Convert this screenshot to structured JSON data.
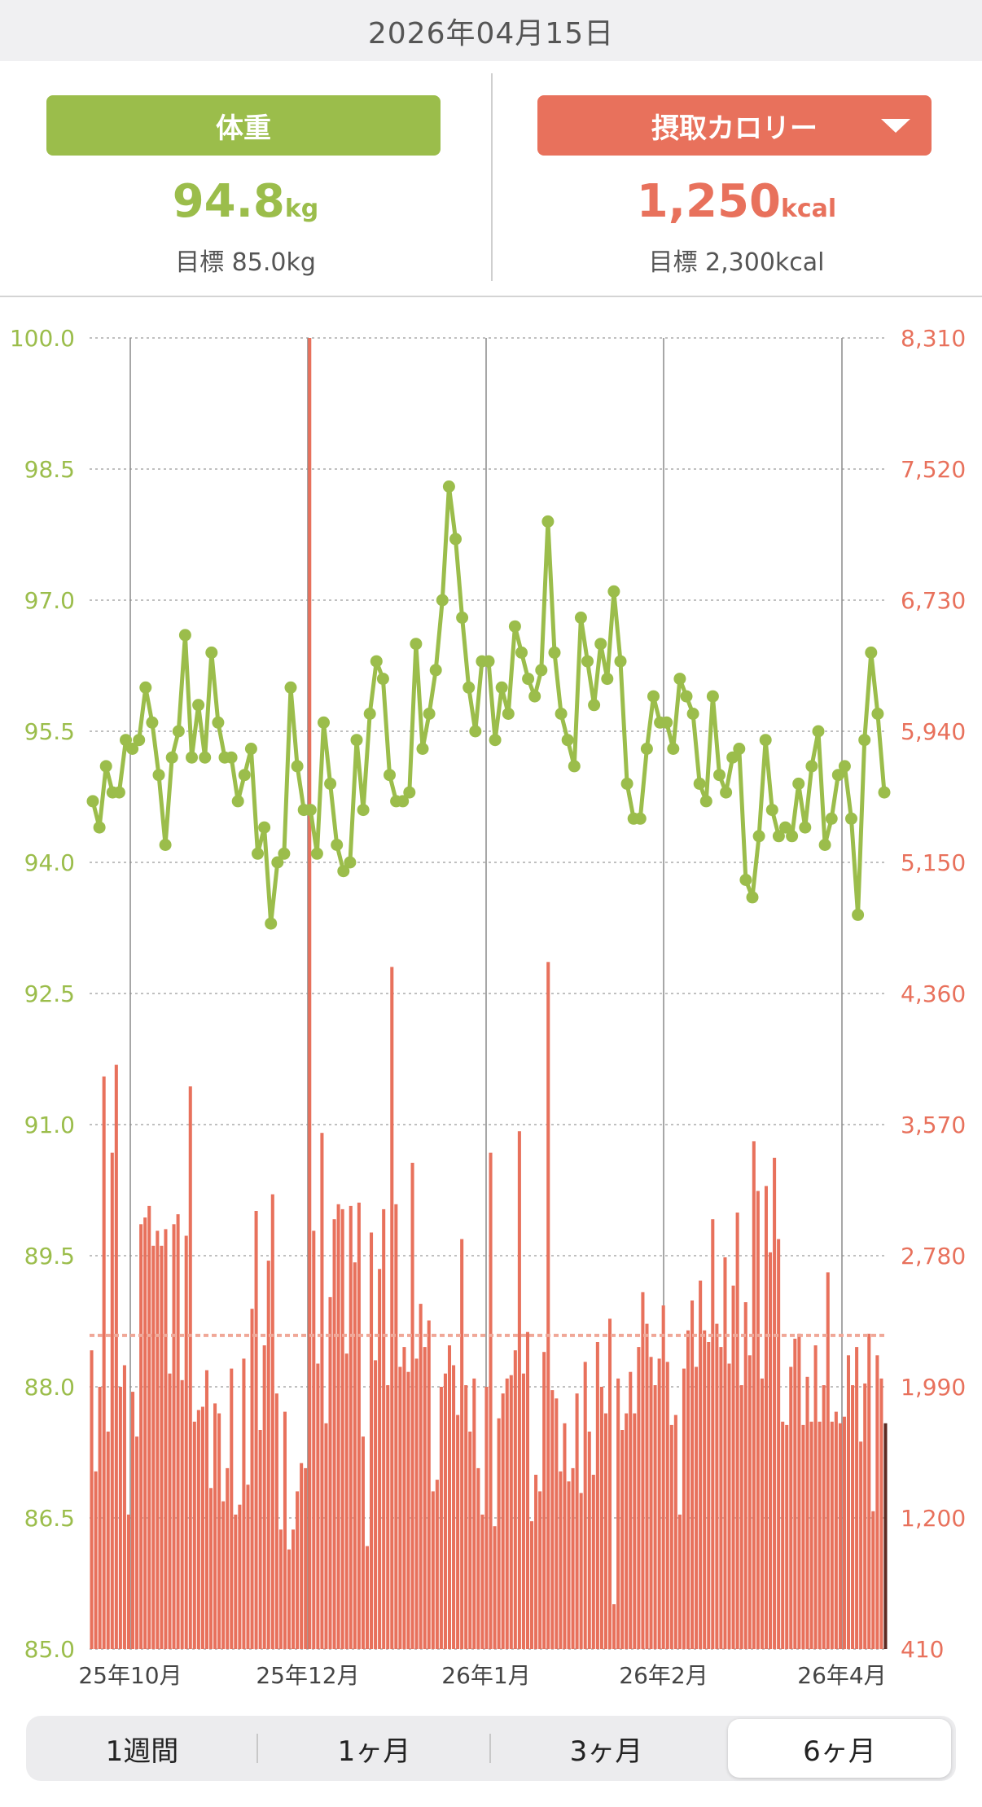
{
  "header": {
    "date": "2026年04月15日"
  },
  "weight": {
    "label": "体重",
    "value": "94.8",
    "unit": "kg",
    "target": "目標 85.0kg"
  },
  "calorie": {
    "label": "摂取カロリー",
    "value": "1,250",
    "unit": "kcal",
    "target": "目標 2,300kcal",
    "dropdown_icon": "chevron-down-icon"
  },
  "colors": {
    "weight": "#9bbd4b",
    "calorie": "#e8715c",
    "calorie_target_line": "#f0a898"
  },
  "periods": [
    "1週間",
    "1ヶ月",
    "3ヶ月",
    "6ヶ月"
  ],
  "selected_period": "6ヶ月",
  "chart_data": {
    "type": "line+bar",
    "x_ticks": [
      "25年10月",
      "25年12月",
      "26年1月",
      "26年2月",
      "26年4月"
    ],
    "left_axis": {
      "ylim": [
        85.0,
        100.0
      ],
      "ticks": [
        "100.0",
        "98.5",
        "97.0",
        "95.5",
        "94.0",
        "92.5",
        "91.0",
        "89.5",
        "88.0",
        "86.5",
        "85.0"
      ]
    },
    "right_axis": {
      "ylim": [
        410,
        8310
      ],
      "ticks": [
        "8,310",
        "7,520",
        "6,730",
        "5,940",
        "5,150",
        "4,360",
        "3,570",
        "2,780",
        "1,990",
        "1,200",
        "410"
      ]
    },
    "calorie_target": 2300,
    "grid": true,
    "weight_series": [
      94.7,
      94.4,
      95.1,
      94.8,
      94.8,
      95.4,
      95.3,
      95.4,
      96.0,
      95.6,
      95.0,
      94.2,
      95.2,
      95.5,
      96.6,
      95.2,
      95.8,
      95.2,
      96.4,
      95.6,
      95.2,
      95.2,
      94.7,
      95.0,
      95.3,
      94.1,
      94.4,
      93.3,
      94.0,
      94.1,
      96.0,
      95.1,
      94.6,
      94.6,
      94.1,
      95.6,
      94.9,
      94.2,
      93.9,
      94.0,
      95.4,
      94.6,
      95.7,
      96.3,
      96.1,
      95.0,
      94.7,
      94.7,
      94.8,
      96.5,
      95.3,
      95.7,
      96.2,
      97.0,
      98.3,
      97.7,
      96.8,
      96.0,
      95.5,
      96.3,
      96.3,
      95.4,
      96.0,
      95.7,
      96.7,
      96.4,
      96.1,
      95.9,
      96.2,
      97.9,
      96.4,
      95.7,
      95.4,
      95.1,
      96.8,
      96.3,
      95.8,
      96.5,
      96.1,
      97.1,
      96.3,
      94.9,
      94.5,
      94.5,
      95.3,
      95.9,
      95.6,
      95.6,
      95.3,
      96.1,
      95.9,
      95.7,
      94.9,
      94.7,
      95.9,
      95.0,
      94.8,
      95.2,
      95.3,
      93.8,
      93.6,
      94.3,
      95.4,
      94.6,
      94.3,
      94.4,
      94.3,
      94.9,
      94.4,
      95.1,
      95.5,
      94.2,
      94.5,
      95.0,
      95.1,
      94.5,
      93.4,
      95.4,
      96.4,
      95.7,
      94.8
    ],
    "calorie_series": [
      2210,
      1480,
      1990,
      3860,
      1720,
      3400,
      3930,
      1990,
      2120,
      1220,
      1960,
      1690,
      2970,
      3010,
      3080,
      2840,
      2930,
      2840,
      2940,
      2070,
      2970,
      3030,
      2030,
      2900,
      3800,
      1780,
      1850,
      1870,
      2090,
      1380,
      1890,
      1830,
      1300,
      1500,
      2100,
      1220,
      1280,
      2160,
      1400,
      2460,
      3050,
      1730,
      2240,
      2750,
      3150,
      1950,
      1130,
      1840,
      1010,
      1130,
      1360,
      1530,
      1500,
      8310,
      2930,
      2130,
      3520,
      1770,
      2530,
      3000,
      3090,
      3060,
      2190,
      3080,
      2740,
      3100,
      1690,
      1030,
      2920,
      2150,
      2700,
      3060,
      2000,
      4520,
      3090,
      2110,
      2230,
      2080,
      3340,
      2160,
      2490,
      2230,
      2390,
      1360,
      1430,
      1990,
      2070,
      2240,
      2120,
      1820,
      2880,
      2000,
      1720,
      2040,
      1500,
      1220,
      1990,
      3400,
      1150,
      1800,
      1950,
      2040,
      2060,
      2210,
      3530,
      2070,
      2320,
      1180,
      1460,
      1360,
      2200,
      4550,
      1970,
      1920,
      1480,
      1770,
      1420,
      1500,
      1950,
      1350,
      2140,
      1720,
      1460,
      2260,
      1990,
      1830,
      2400,
      680,
      2040,
      1730,
      1830,
      2080,
      1830,
      2230,
      2560,
      2370,
      2170,
      2000,
      2160,
      2480,
      2140,
      1760,
      1820,
      1220,
      2100,
      2330,
      2510,
      2110,
      2630,
      2330,
      2260,
      3000,
      2370,
      2230,
      2770,
      2130,
      2600,
      3040,
      2000,
      2500,
      2180,
      3470,
      3170,
      2040,
      3200,
      2800,
      3370,
      2880,
      1780,
      1760,
      2110,
      2280,
      2310,
      1760,
      2050,
      1780,
      2240,
      1780,
      2000,
      2680,
      1780,
      1840,
      1770,
      1810,
      2180,
      2000,
      2230,
      1660,
      2010,
      2310,
      1240,
      2180,
      2040,
      1770
    ]
  }
}
